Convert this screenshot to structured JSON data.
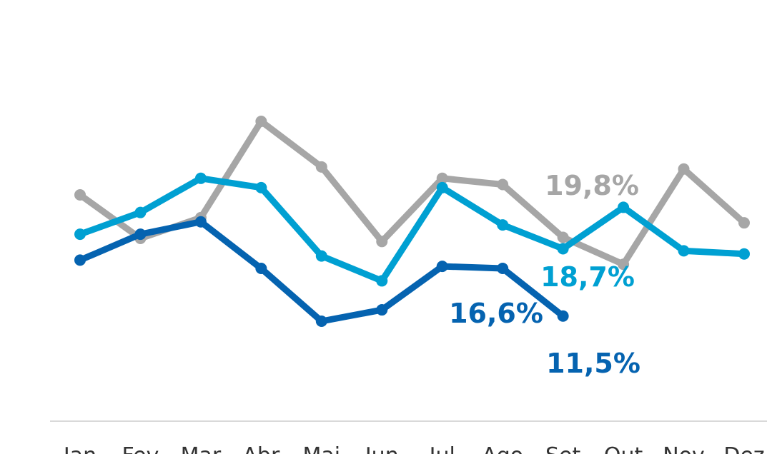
{
  "chart_data": {
    "type": "line",
    "categories": [
      "Jan",
      "Fev",
      "Mar",
      "Abr",
      "Mai",
      "Jun",
      "Jul",
      "Ago",
      "Set",
      "Out",
      "Nov",
      "Dez"
    ],
    "series": [
      {
        "color": "#a6a6a6",
        "values": [
          23.9,
          19.7,
          21.7,
          31.0,
          26.6,
          19.4,
          25.5,
          24.9,
          19.8,
          17.2,
          26.4,
          21.2
        ]
      },
      {
        "color": "#00a0d2",
        "values": [
          20.1,
          22.2,
          25.5,
          24.6,
          18.0,
          15.6,
          24.6,
          21.0,
          18.7,
          22.7,
          18.5,
          18.2
        ]
      },
      {
        "color": "#0563b0",
        "values": [
          17.6,
          20.1,
          21.3,
          16.8,
          11.7,
          12.8,
          17.0,
          16.8,
          12.2,
          null,
          null,
          null
        ]
      }
    ],
    "annotations": [
      {
        "text": "19,8%",
        "color": "#a6a6a6"
      },
      {
        "text": "18,7%",
        "color": "#00a0d2"
      },
      {
        "text": "16,6%",
        "color": "#0563b0"
      },
      {
        "text": "11,5%",
        "color": "#0563b0"
      }
    ]
  }
}
